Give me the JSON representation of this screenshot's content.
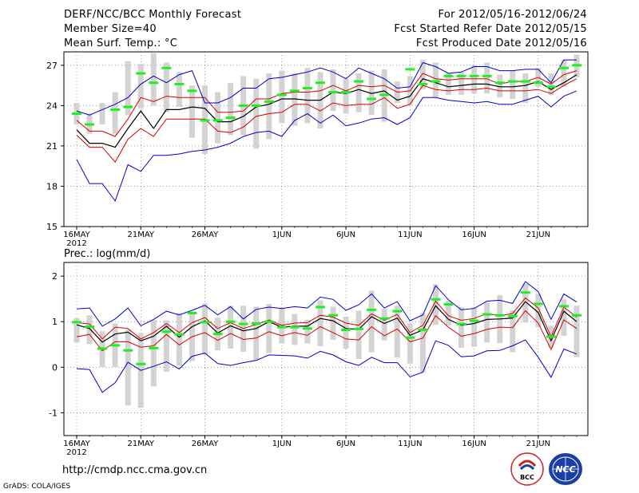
{
  "header": {
    "title": "DERF/NCC/BCC Monthly Forecast",
    "member_size": "Member Size=40",
    "variable": "Mean Surf. Temp.: °C",
    "forecast_range": "For 2012/05/16-2012/06/24",
    "start_date": "Fcst Started Refer Date 2012/05/15",
    "produced_date": "Fcst Produced Date 2012/05/16"
  },
  "footer": {
    "url": "http://cmdp.ncc.cma.gov.cn",
    "grads_credit": "GrADS: COLA/IGES",
    "logo_bcc_text": "BCC",
    "logo_ncc_text": "NCC"
  },
  "colors": {
    "ensemble_mean": "#000000",
    "ensemble_inner": "#d40000",
    "ensemble_outer": "#0000c8",
    "observation": "#22ee22",
    "spread_bar": "#d3d3d3",
    "grid": "#000000"
  },
  "chart_data": [
    {
      "type": "line",
      "title": "Mean Surf. Temp.: °C",
      "x_tick_labels": [
        "16MAY",
        "21MAY",
        "26MAY",
        "1JUN",
        "6JUN",
        "11JUN",
        "16JUN",
        "21JUN"
      ],
      "x_tick_index": [
        0,
        5,
        10,
        16,
        21,
        26,
        31,
        36
      ],
      "year_label": "2012",
      "ylim": [
        15,
        28
      ],
      "yticks": [
        15,
        18,
        21,
        24,
        27
      ],
      "n_days": 40,
      "series": [
        {
          "name": "mean",
          "values": [
            22.2,
            21.2,
            21.2,
            20.9,
            22.3,
            23.6,
            22.3,
            23.7,
            23.7,
            23.9,
            23.8,
            22.8,
            22.8,
            23.2,
            23.9,
            24.1,
            24.5,
            24.5,
            24.4,
            24.4,
            25.0,
            24.9,
            25.2,
            24.9,
            25.1,
            24.4,
            24.7,
            26.0,
            25.7,
            25.4,
            25.5,
            25.6,
            25.6,
            25.4,
            25.4,
            25.5,
            25.8,
            25.2,
            25.7,
            26.3
          ]
        },
        {
          "name": "upper_inner",
          "values": [
            22.9,
            22.1,
            22.1,
            21.7,
            23.0,
            24.6,
            24.3,
            24.7,
            24.6,
            24.6,
            24.6,
            23.5,
            23.5,
            23.6,
            24.5,
            24.5,
            24.9,
            25.0,
            25.0,
            25.1,
            25.5,
            25.1,
            25.5,
            25.4,
            25.5,
            25.0,
            25.1,
            26.4,
            26.0,
            25.9,
            26.0,
            26.0,
            26.0,
            25.6,
            25.8,
            25.8,
            26.1,
            25.6,
            26.3,
            26.6
          ]
        },
        {
          "name": "lower_inner",
          "values": [
            21.8,
            20.9,
            20.9,
            19.8,
            21.5,
            22.3,
            21.7,
            23.0,
            23.0,
            23.0,
            23.0,
            22.1,
            22.0,
            22.4,
            23.2,
            23.4,
            23.5,
            24.1,
            24.1,
            23.6,
            24.2,
            24.0,
            24.1,
            24.1,
            24.6,
            23.8,
            24.1,
            25.5,
            25.2,
            25.1,
            25.2,
            25.2,
            25.3,
            25.1,
            25.1,
            25.1,
            25.2,
            24.9,
            25.5,
            26.0
          ]
        },
        {
          "name": "upper_outer",
          "values": [
            23.6,
            23.3,
            23.7,
            24.1,
            24.6,
            25.6,
            26.2,
            25.7,
            26.3,
            26.6,
            24.2,
            24.2,
            24.6,
            25.3,
            25.3,
            26.0,
            26.1,
            26.3,
            26.5,
            26.8,
            26.5,
            26.0,
            26.8,
            26.4,
            26.0,
            25.3,
            25.4,
            27.2,
            26.9,
            26.4,
            26.5,
            26.9,
            26.9,
            26.6,
            26.6,
            26.7,
            26.7,
            25.7,
            27.4,
            27.4
          ]
        },
        {
          "name": "lower_outer",
          "values": [
            20.0,
            18.2,
            18.2,
            16.9,
            19.6,
            19.1,
            20.3,
            20.3,
            20.4,
            20.6,
            20.7,
            20.9,
            21.2,
            21.7,
            22.0,
            22.1,
            21.7,
            22.9,
            23.4,
            22.7,
            23.3,
            22.5,
            22.7,
            23.0,
            23.1,
            22.6,
            23.1,
            24.6,
            24.6,
            24.4,
            24.3,
            24.2,
            24.3,
            24.1,
            24.1,
            24.4,
            24.7,
            23.9,
            24.7,
            25.1
          ]
        },
        {
          "name": "observation",
          "values": [
            23.4,
            22.6,
            23.7,
            23.9,
            26.4,
            25.7,
            26.8,
            25.6,
            25.1,
            22.9,
            22.9,
            23.1,
            24.0,
            24.0,
            24.3,
            24.8,
            25.1,
            25.3,
            25.7,
            25.0,
            25.0,
            25.8,
            24.5,
            24.8,
            26.7,
            25.6,
            25.8,
            26.2,
            26.2,
            26.2,
            26.2,
            25.7,
            25.8,
            25.8,
            25.7,
            25.4,
            26.8,
            27.0
          ]
        }
      ],
      "obs_days": [
        0,
        1,
        3,
        4,
        5,
        6,
        7,
        8,
        9,
        10,
        11,
        12,
        13,
        14,
        15,
        16,
        17,
        18,
        19,
        20,
        21,
        22,
        23,
        24,
        26,
        27,
        28,
        29,
        30,
        31,
        32,
        33,
        34,
        35,
        36,
        37,
        38,
        39
      ],
      "spread": {
        "low": [
          22.6,
          21.9,
          22.6,
          21.9,
          23.3,
          23.8,
          24.0,
          23.5,
          23.9,
          21.6,
          20.4,
          21.2,
          21.8,
          21.8,
          20.8,
          21.5,
          22.7,
          22.5,
          22.7,
          22.3,
          23.6,
          23.4,
          23.5,
          23.3,
          22.8,
          24.2,
          24.0,
          25.2,
          24.6,
          24.8,
          24.8,
          24.9,
          24.9,
          24.6,
          24.5,
          24.2,
          25.4,
          24.8,
          25.4,
          26.1
        ],
        "high": [
          24.2,
          23.4,
          24.2,
          25.0,
          27.3,
          27.1,
          27.9,
          27.2,
          26.5,
          25.5,
          25.5,
          25.0,
          25.7,
          26.2,
          26.0,
          26.4,
          26.6,
          26.4,
          26.8,
          26.5,
          26.7,
          26.0,
          26.4,
          26.6,
          26.7,
          25.8,
          26.2,
          27.4,
          27.2,
          26.4,
          26.5,
          27.0,
          27.2,
          26.3,
          26.6,
          26.4,
          26.8,
          26.4,
          27.4,
          27.8
        ]
      }
    },
    {
      "type": "line",
      "title": "Prec.: log(mm/d)",
      "x_tick_labels": [
        "16MAY",
        "21MAY",
        "26MAY",
        "1JUN",
        "6JUN",
        "11JUN",
        "16JUN",
        "21JUN"
      ],
      "x_tick_index": [
        0,
        5,
        10,
        16,
        21,
        26,
        31,
        36
      ],
      "year_label": "2012",
      "ylim": [
        -1.5,
        2.3
      ],
      "yticks": [
        -1,
        0,
        1,
        2
      ],
      "n_days": 40,
      "series": [
        {
          "name": "mean",
          "values": [
            0.93,
            0.85,
            0.55,
            0.73,
            0.77,
            0.58,
            0.68,
            0.9,
            0.66,
            0.89,
            1.02,
            0.75,
            0.91,
            0.8,
            0.85,
            1.0,
            0.88,
            0.9,
            0.9,
            1.07,
            1.02,
            0.85,
            0.83,
            1.11,
            0.96,
            1.08,
            0.7,
            0.82,
            1.35,
            1.05,
            0.92,
            0.96,
            1.05,
            1.06,
            1.08,
            1.44,
            1.2,
            0.58,
            1.23,
            1.0
          ]
        },
        {
          "name": "upper_inner",
          "values": [
            0.98,
            0.95,
            0.62,
            0.88,
            0.85,
            0.62,
            0.76,
            0.96,
            0.76,
            0.98,
            1.09,
            0.85,
            0.98,
            0.85,
            0.94,
            1.04,
            0.92,
            0.97,
            0.98,
            1.14,
            1.1,
            0.97,
            0.92,
            1.17,
            1.03,
            1.16,
            0.76,
            0.92,
            1.45,
            1.13,
            1.03,
            1.07,
            1.18,
            1.13,
            1.18,
            1.52,
            1.3,
            0.67,
            1.32,
            1.1
          ]
        },
        {
          "name": "lower_inner",
          "values": [
            0.67,
            0.72,
            0.36,
            0.56,
            0.56,
            0.44,
            0.47,
            0.72,
            0.49,
            0.67,
            0.76,
            0.59,
            0.74,
            0.61,
            0.64,
            0.78,
            0.69,
            0.76,
            0.7,
            0.89,
            0.76,
            0.62,
            0.6,
            0.89,
            0.69,
            0.84,
            0.56,
            0.64,
            1.13,
            0.88,
            0.68,
            0.74,
            0.83,
            0.88,
            0.87,
            1.24,
            0.97,
            0.39,
            1.04,
            0.85
          ]
        },
        {
          "name": "upper_outer",
          "values": [
            1.28,
            1.3,
            0.9,
            1.06,
            1.3,
            0.91,
            1.05,
            1.23,
            1.15,
            1.25,
            1.36,
            1.15,
            1.33,
            1.06,
            1.27,
            1.32,
            1.29,
            1.33,
            1.3,
            1.54,
            1.49,
            1.25,
            1.37,
            1.61,
            1.3,
            1.44,
            1.02,
            1.15,
            1.79,
            1.48,
            1.26,
            1.29,
            1.45,
            1.47,
            1.4,
            1.88,
            1.66,
            1.05,
            1.61,
            1.43
          ]
        },
        {
          "name": "lower_outer",
          "values": [
            -0.03,
            -0.05,
            -0.55,
            -0.34,
            0.11,
            -0.07,
            0.02,
            0.12,
            -0.04,
            0.24,
            0.31,
            0.08,
            0.04,
            0.1,
            0.15,
            0.27,
            0.26,
            0.25,
            0.2,
            0.35,
            0.27,
            0.12,
            0.04,
            0.22,
            0.1,
            0.1,
            -0.21,
            -0.11,
            0.58,
            0.48,
            0.23,
            0.25,
            0.36,
            0.37,
            0.47,
            0.6,
            0.22,
            -0.22,
            0.4,
            0.29
          ]
        },
        {
          "name": "observation",
          "values": [
            0.99,
            0.89,
            0.41,
            0.48,
            0.37,
            0.07,
            0.42,
            0.78,
            0.72,
            1.19,
            0.99,
            0.73,
            1.0,
            0.95,
            0.96,
            1.0,
            0.88,
            0.88,
            0.85,
            1.32,
            1.14,
            0.82,
            0.84,
            1.26,
            1.07,
            1.23,
            0.65,
            0.82,
            1.49,
            1.38,
            0.95,
            1.02,
            1.16,
            1.14,
            1.12,
            1.64,
            1.39,
            0.67,
            1.34,
            1.14
          ]
        }
      ],
      "obs_days": [
        0,
        1,
        2,
        3,
        4,
        5,
        6,
        7,
        8,
        9,
        10,
        11,
        12,
        13,
        14,
        15,
        16,
        17,
        18,
        19,
        20,
        21,
        22,
        23,
        24,
        25,
        26,
        27,
        28,
        29,
        30,
        31,
        32,
        33,
        34,
        35,
        36,
        37,
        38,
        39
      ],
      "spread": {
        "low": [
          0.54,
          0.51,
          0.0,
          0.0,
          -0.84,
          -0.89,
          -0.42,
          -0.1,
          0.03,
          0.14,
          0.28,
          0.37,
          0.41,
          0.34,
          0.15,
          0.31,
          0.52,
          0.49,
          0.52,
          0.46,
          0.6,
          0.41,
          0.18,
          0.33,
          0.59,
          0.21,
          0.08,
          -0.11,
          0.93,
          0.92,
          0.43,
          0.45,
          0.54,
          0.53,
          0.33,
          0.98,
          0.88,
          0.43,
          0.69,
          0.22
        ],
        "high": [
          1.08,
          1.14,
          0.79,
          0.96,
          0.83,
          0.75,
          1.04,
          1.03,
          1.19,
          1.22,
          1.4,
          1.09,
          1.35,
          1.35,
          1.33,
          1.39,
          1.3,
          1.17,
          1.04,
          1.47,
          1.33,
          1.11,
          1.24,
          1.68,
          1.28,
          1.35,
          0.96,
          1.19,
          1.82,
          1.46,
          1.32,
          1.31,
          1.43,
          1.58,
          1.25,
          1.83,
          1.61,
          0.91,
          1.49,
          1.35
        ]
      }
    }
  ]
}
